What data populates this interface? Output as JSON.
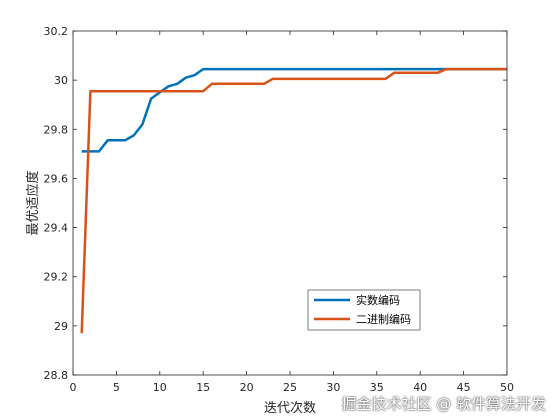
{
  "chart_data": {
    "type": "line",
    "title": "",
    "xlabel": "迭代次数",
    "ylabel": "最优适应度",
    "xlim": [
      0,
      50
    ],
    "ylim": [
      28.8,
      30.2
    ],
    "xticks": [
      0,
      5,
      10,
      15,
      20,
      25,
      30,
      35,
      40,
      45,
      50
    ],
    "yticks": [
      28.8,
      29,
      29.2,
      29.4,
      29.6,
      29.8,
      30,
      30.2
    ],
    "xtick_labels": [
      "0",
      "5",
      "10",
      "15",
      "20",
      "25",
      "30",
      "35",
      "40",
      "45",
      "50"
    ],
    "ytick_labels": [
      "28.8",
      "29",
      "29.2",
      "29.4",
      "29.6",
      "29.8",
      "30",
      "30.2"
    ],
    "grid": false,
    "legend_position": "bottom-right",
    "series": [
      {
        "name": "实数编码",
        "color": "#0072BD",
        "x": [
          1,
          2,
          3,
          4,
          5,
          6,
          7,
          8,
          9,
          10,
          11,
          12,
          13,
          14,
          15,
          16,
          20,
          25,
          30,
          35,
          40,
          42,
          45,
          50
        ],
        "y": [
          29.71,
          29.71,
          29.71,
          29.755,
          29.755,
          29.755,
          29.775,
          29.82,
          29.925,
          29.95,
          29.975,
          29.985,
          30.01,
          30.02,
          30.045,
          30.045,
          30.045,
          30.045,
          30.045,
          30.045,
          30.045,
          30.045,
          30.045,
          30.045
        ]
      },
      {
        "name": "二进制编码",
        "color": "#D95319",
        "x": [
          1,
          2,
          3,
          5,
          10,
          15,
          16,
          20,
          22,
          23,
          25,
          30,
          35,
          36,
          37,
          40,
          42,
          43,
          45,
          50
        ],
        "y": [
          28.97,
          29.955,
          29.955,
          29.955,
          29.955,
          29.955,
          29.985,
          29.985,
          29.985,
          30.005,
          30.005,
          30.005,
          30.005,
          30.005,
          30.03,
          30.03,
          30.03,
          30.045,
          30.045,
          30.045
        ]
      }
    ]
  },
  "watermark": "掘金技术社区 @ 软件算法开发"
}
